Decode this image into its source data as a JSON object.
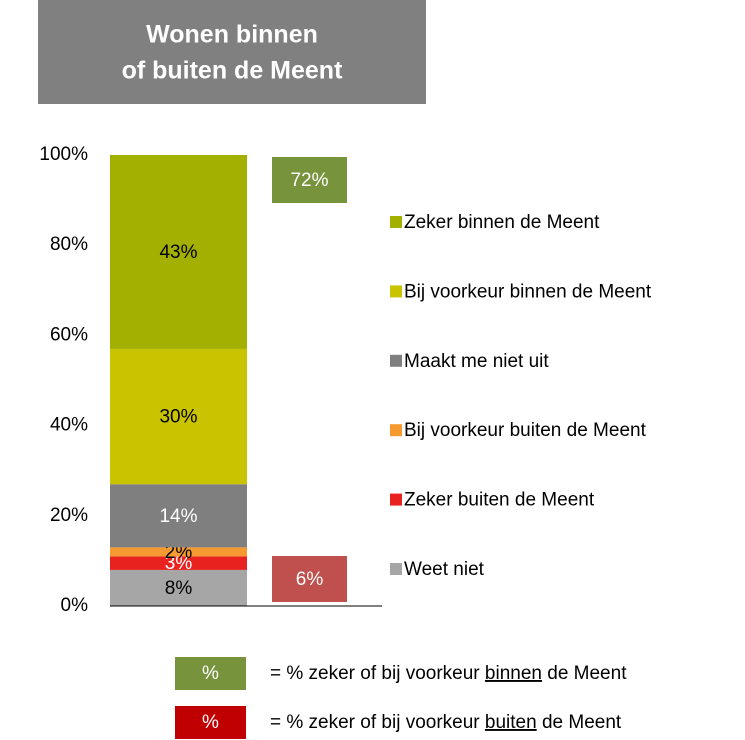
{
  "chart_data": {
    "type": "stacked_bar",
    "title_lines": [
      "Wonen binnen",
      "of buiten de Meent"
    ],
    "ylim": [
      0,
      100
    ],
    "yticks": [
      {
        "value": 0,
        "label": "0%"
      },
      {
        "value": 20,
        "label": "20%"
      },
      {
        "value": 40,
        "label": "40%"
      },
      {
        "value": 60,
        "label": "60%"
      },
      {
        "value": 80,
        "label": "80%"
      },
      {
        "value": 100,
        "label": "100%"
      }
    ],
    "series": [
      {
        "name": "Weet niet",
        "color": "#a6a6a6",
        "label_color": "#000000",
        "values": [
          8
        ],
        "value_labels": [
          "8%"
        ]
      },
      {
        "name": "Zeker buiten de Meent",
        "color": "#e8221e",
        "label_color": "#ffffff",
        "values": [
          3
        ],
        "value_labels": [
          "3%"
        ]
      },
      {
        "name": "Bij voorkeur buiten de Meent",
        "color": "#f59a31",
        "label_color": "#000000",
        "values": [
          2
        ],
        "value_labels": [
          "2%"
        ]
      },
      {
        "name": "Maakt me niet uit",
        "color": "#7f7f7f",
        "label_color": "#ffffff",
        "values": [
          14
        ],
        "value_labels": [
          "14%"
        ]
      },
      {
        "name": "Bij voorkeur binnen de Meent",
        "color": "#c9c300",
        "label_color": "#000000",
        "values": [
          30
        ],
        "value_labels": [
          "30%"
        ]
      },
      {
        "name": "Zeker binnen de Meent",
        "color": "#a3b000",
        "label_color": "#000000",
        "values": [
          43
        ],
        "value_labels": [
          "43%"
        ]
      }
    ],
    "summary": [
      {
        "value": 72,
        "label": "72%",
        "color": "#77933c"
      },
      {
        "value": 6,
        "label": "6%",
        "color": "#c0504d"
      }
    ],
    "key": [
      {
        "symbol": "%",
        "color": "#77933c",
        "prefix": "= % zeker of bij voorkeur ",
        "emph": "binnen",
        "suffix": " de Meent"
      },
      {
        "symbol": "%",
        "color": "#c00000",
        "prefix": "= % zeker of bij voorkeur ",
        "emph": "buiten",
        "suffix": " de Meent"
      }
    ]
  }
}
